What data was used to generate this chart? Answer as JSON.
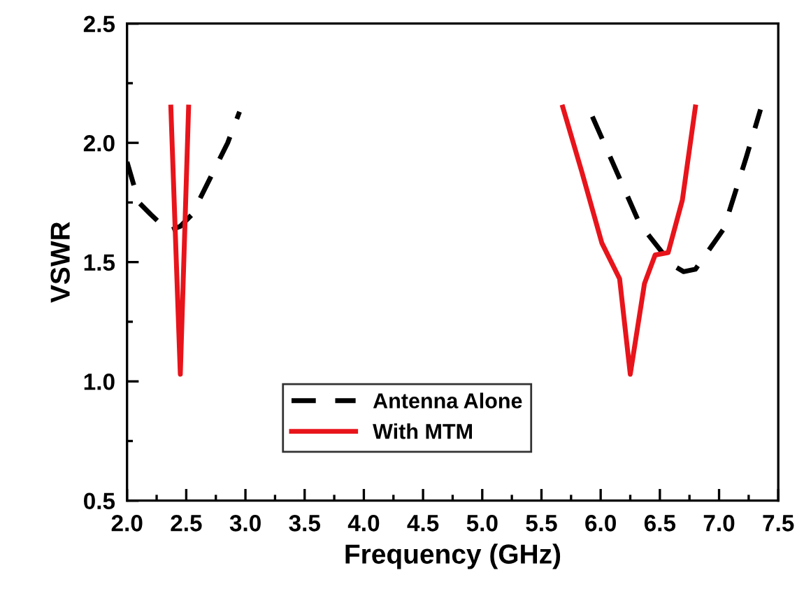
{
  "chart_data": {
    "type": "line",
    "xlabel": "Frequency (GHz)",
    "ylabel": "VSWR",
    "xlim": [
      2.0,
      7.5
    ],
    "xticks": [
      {
        "value": 2.0,
        "label": "2.0"
      },
      {
        "value": 2.5,
        "label": "2.5"
      },
      {
        "value": 3.0,
        "label": "3.0"
      },
      {
        "value": 3.5,
        "label": "3.5"
      },
      {
        "value": 4.0,
        "label": "4.0"
      },
      {
        "value": 4.5,
        "label": "4.5"
      },
      {
        "value": 5.0,
        "label": "5.0"
      },
      {
        "value": 5.5,
        "label": "5.5"
      },
      {
        "value": 6.0,
        "label": "6.0"
      },
      {
        "value": 6.5,
        "label": "6.5"
      },
      {
        "value": 7.0,
        "label": "7.0"
      },
      {
        "value": 7.5,
        "label": "7.5"
      }
    ],
    "ylim": [
      0.5,
      2.5
    ],
    "yticks": [
      {
        "value": 0.5,
        "label": "0.5"
      },
      {
        "value": 1.0,
        "label": "1.0"
      },
      {
        "value": 1.5,
        "label": "1.5"
      },
      {
        "value": 2.0,
        "label": "2.0"
      },
      {
        "value": 2.5,
        "label": "2.5"
      }
    ],
    "grid": false,
    "legend": "bottom",
    "series": [
      {
        "name": "Antenna Alone",
        "color": "#000000",
        "line_style": "dashed",
        "x": [
          2.0,
          2.1,
          2.2,
          2.35,
          2.45,
          2.55,
          2.7,
          2.85,
          2.95,
          null,
          5.93,
          6.33,
          6.6,
          6.7,
          6.8,
          7.04,
          7.23,
          7.35
        ],
        "values": [
          1.92,
          1.75,
          1.7,
          1.63,
          1.65,
          1.7,
          1.85,
          2.0,
          2.13,
          null,
          2.11,
          1.66,
          1.49,
          1.46,
          1.47,
          1.64,
          1.94,
          2.14
        ]
      },
      {
        "name": "With MTM",
        "color": "#e8141b",
        "line_style": "solid",
        "x": [
          2.37,
          2.45,
          2.52,
          null,
          5.68,
          5.84,
          6.01,
          6.16,
          6.25,
          6.37,
          6.46,
          6.57,
          6.69,
          6.8
        ],
        "values": [
          2.15,
          1.03,
          2.15,
          null,
          2.15,
          1.88,
          1.58,
          1.43,
          1.03,
          1.41,
          1.53,
          1.54,
          1.76,
          2.15
        ]
      }
    ]
  }
}
